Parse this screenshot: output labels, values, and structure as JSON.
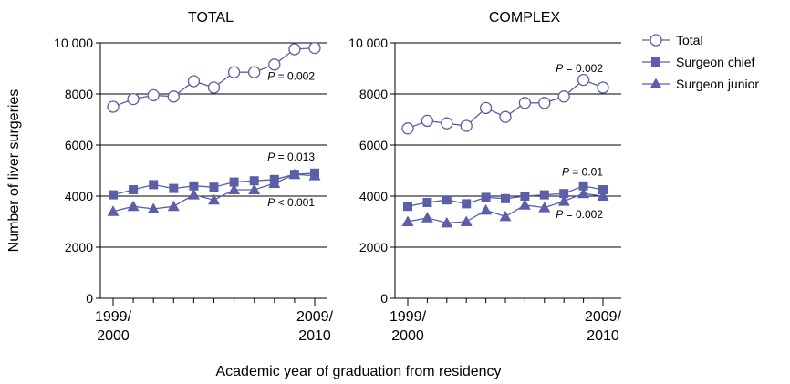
{
  "figure": {
    "ylabel": "Number of liver surgeries",
    "xlabel": "Academic year of graduation from residency"
  },
  "legend": {
    "placement": "right",
    "items": [
      {
        "label": "Total",
        "marker": "open-circle"
      },
      {
        "label": "Surgeon chief",
        "marker": "filled-square"
      },
      {
        "label": "Surgeon junior",
        "marker": "filled-triangle"
      }
    ]
  },
  "colors": {
    "series": "#5a5fa8",
    "axis": "#000000",
    "grid": "#000000",
    "background": "#ffffff"
  },
  "chart_data": [
    {
      "type": "line",
      "title": "TOTAL",
      "xlabel": "Academic year of graduation from residency",
      "ylabel": "Number of liver surgeries",
      "ylim": [
        0,
        10000
      ],
      "yticks": [
        "0",
        "2000",
        "4000",
        "6000",
        "8000",
        "10 000"
      ],
      "ytick_values": [
        0,
        2000,
        4000,
        6000,
        8000,
        10000
      ],
      "grid": "horizontal",
      "x": [
        1,
        2,
        3,
        4,
        5,
        6,
        7,
        8,
        9,
        10,
        11
      ],
      "xticks": [
        {
          "x": 1,
          "line1": "1999/",
          "line2": "2000"
        },
        {
          "x": 11,
          "line1": "2009/",
          "line2": "2010"
        }
      ],
      "series": [
        {
          "name": "Total",
          "marker": "open-circle",
          "values": [
            7500,
            7800,
            7950,
            7900,
            8500,
            8250,
            8850,
            8850,
            9150,
            9750,
            9800
          ]
        },
        {
          "name": "Surgeon chief",
          "marker": "filled-square",
          "values": [
            4050,
            4250,
            4450,
            4300,
            4400,
            4350,
            4550,
            4600,
            4650,
            4850,
            4900
          ]
        },
        {
          "name": "Surgeon junior",
          "marker": "filled-triangle",
          "values": [
            3400,
            3600,
            3500,
            3600,
            4050,
            3850,
            4250,
            4250,
            4500,
            4850,
            4800
          ]
        }
      ],
      "annotations": [
        {
          "prefix": "P",
          "text": " = 0.002",
          "x": 11,
          "y": 8550
        },
        {
          "prefix": "P",
          "text": " = 0.013",
          "x": 11,
          "y": 5400
        },
        {
          "prefix": "P",
          "text": " < 0.001",
          "x": 11,
          "y": 3600
        }
      ]
    },
    {
      "type": "line",
      "title": "COMPLEX",
      "xlabel": "Academic year of graduation from residency",
      "ylabel": "Number of liver surgeries",
      "ylim": [
        0,
        10000
      ],
      "yticks": [
        "0",
        "2000",
        "4000",
        "6000",
        "8000",
        "10 000"
      ],
      "ytick_values": [
        0,
        2000,
        4000,
        6000,
        8000,
        10000
      ],
      "grid": "horizontal",
      "x": [
        1,
        2,
        3,
        4,
        5,
        6,
        7,
        8,
        9,
        10,
        11
      ],
      "xticks": [
        {
          "x": 1,
          "line1": "1999/",
          "line2": "2000"
        },
        {
          "x": 11,
          "line1": "2009/",
          "line2": "2010"
        }
      ],
      "series": [
        {
          "name": "Total",
          "marker": "open-circle",
          "values": [
            6650,
            6950,
            6850,
            6750,
            7450,
            7100,
            7650,
            7650,
            7900,
            8550,
            8250
          ]
        },
        {
          "name": "Surgeon chief",
          "marker": "filled-square",
          "values": [
            3600,
            3750,
            3850,
            3700,
            3950,
            3900,
            4000,
            4050,
            4100,
            4400,
            4250
          ]
        },
        {
          "name": "Surgeon junior",
          "marker": "filled-triangle",
          "values": [
            3000,
            3150,
            2950,
            3000,
            3450,
            3200,
            3650,
            3550,
            3800,
            4100,
            4000
          ]
        }
      ],
      "annotations": [
        {
          "prefix": "P",
          "text": " = 0.002",
          "x": 11,
          "y": 8850
        },
        {
          "prefix": "P",
          "text": " = 0.01",
          "x": 11,
          "y": 4800
        },
        {
          "prefix": "P",
          "text": " = 0.002",
          "x": 11,
          "y": 3150
        }
      ]
    }
  ]
}
